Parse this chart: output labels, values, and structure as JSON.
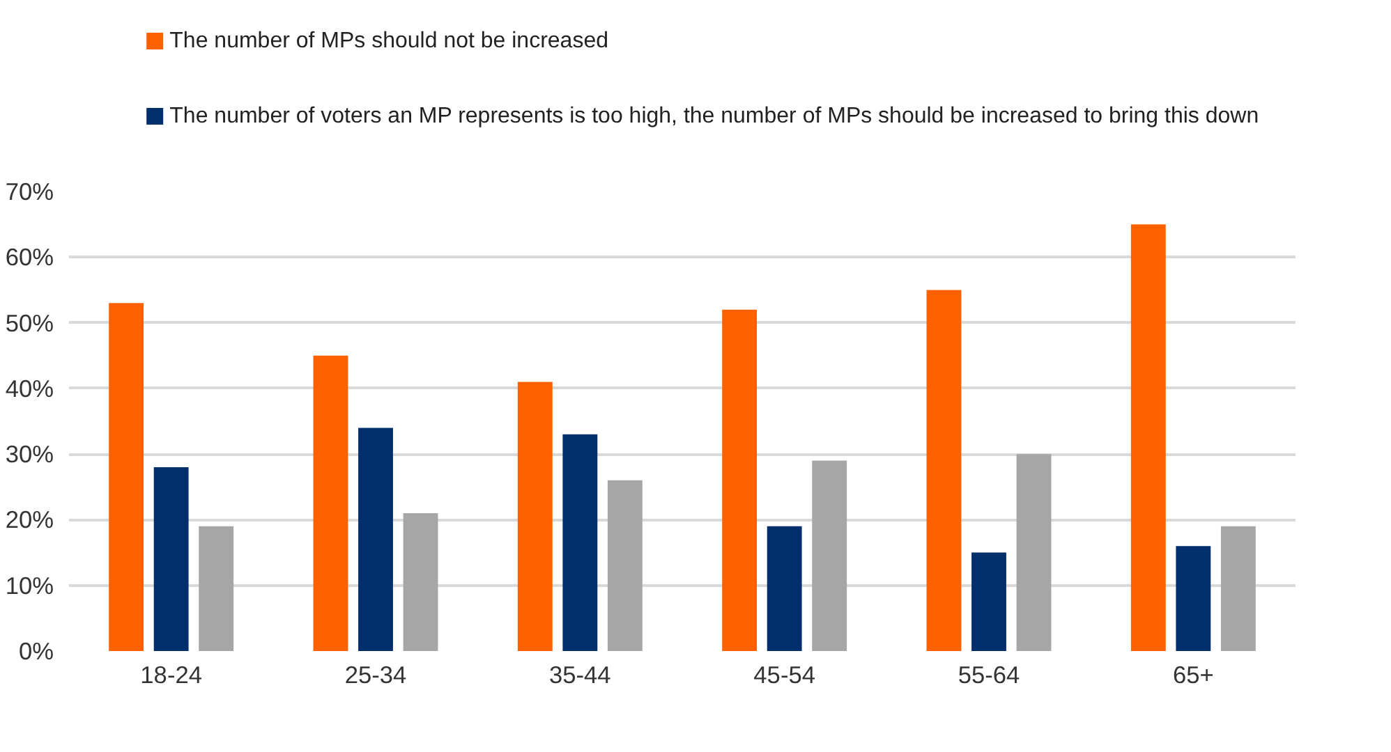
{
  "chart_data": {
    "type": "bar",
    "categories": [
      "18-24",
      "25-34",
      "35-44",
      "45-54",
      "55-64",
      "65+"
    ],
    "series": [
      {
        "name": "The number of MPs should not be increased",
        "color": "#ff6000",
        "values": [
          53,
          45,
          41,
          52,
          55,
          65
        ]
      },
      {
        "name": "The number of voters an MP represents is too high, the number of MPs should be increased to bring this down",
        "color": "#002f6c",
        "values": [
          28,
          34,
          33,
          19,
          15,
          16
        ]
      },
      {
        "color": "#a6a6a6",
        "values": [
          19,
          21,
          26,
          29,
          30,
          19
        ]
      }
    ],
    "ylim": [
      0,
      70
    ],
    "yticks": [
      {
        "value": 0,
        "label": "0%"
      },
      {
        "value": 10,
        "label": "10%"
      },
      {
        "value": 20,
        "label": "20%"
      },
      {
        "value": 30,
        "label": "30%"
      },
      {
        "value": 40,
        "label": "40%"
      },
      {
        "value": 50,
        "label": "50%"
      },
      {
        "value": 60,
        "label": "60%"
      },
      {
        "value": 70,
        "label": "70%"
      }
    ],
    "grid": "y",
    "legend": "top"
  }
}
